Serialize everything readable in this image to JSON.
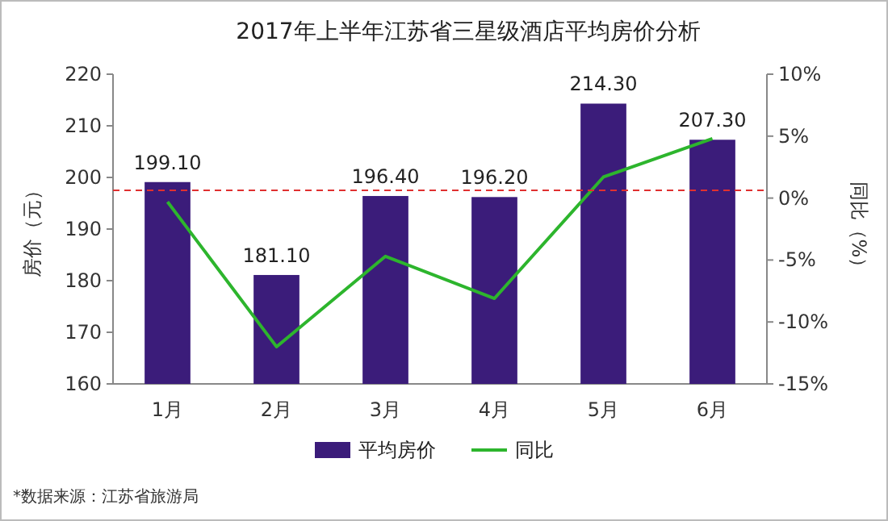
{
  "chart_data": {
    "type": "bar",
    "title": "2017年上半年江苏省三星级酒店平均房价分析",
    "ylabel": "房价（元）",
    "y2label": "同比（%）",
    "categories": [
      "1月",
      "2月",
      "3月",
      "4月",
      "5月",
      "6月"
    ],
    "series": [
      {
        "name": "平均房价",
        "color": "#3b1c7a",
        "values": [
          199.1,
          181.1,
          196.4,
          196.2,
          214.3,
          207.3
        ],
        "value_labels": [
          "199.10",
          "181.10",
          "196.40",
          "196.20",
          "214.30",
          "207.30"
        ]
      },
      {
        "name": "同比",
        "type": "line",
        "axis": "y2",
        "color": "#2db52d",
        "values": [
          -0.3,
          -12,
          -4.7,
          -8.1,
          1.7,
          4.8
        ]
      }
    ],
    "ylim": [
      160,
      220
    ],
    "yticks": [
      160,
      170,
      180,
      190,
      200,
      210,
      220
    ],
    "y2lim": [
      -15,
      10
    ],
    "y2ticks": [
      {
        "value": -15,
        "label": "-15%"
      },
      {
        "value": -10,
        "label": "-10%"
      },
      {
        "value": -5,
        "label": "-5%"
      },
      {
        "value": 0,
        "label": "0%"
      },
      {
        "value": 5,
        "label": "5%"
      },
      {
        "value": 10,
        "label": "10%"
      }
    ],
    "ref_lines": [
      {
        "axis": "y",
        "value": 197.5,
        "color": "#e03030",
        "line_style": "dashed"
      }
    ],
    "legend": "bottom",
    "grid": false,
    "marker": "none",
    "annotations": [
      "*数据来源：江苏省旅游局"
    ]
  }
}
